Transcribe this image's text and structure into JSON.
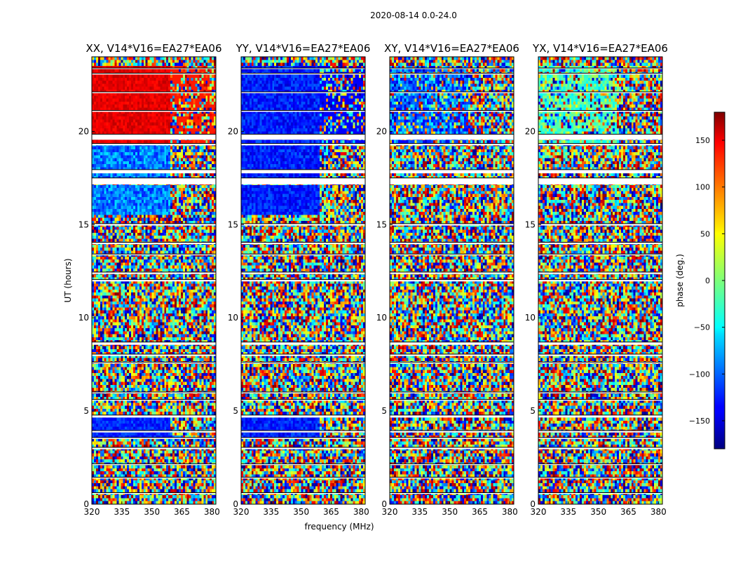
{
  "chart_data": {
    "type": "heatmap",
    "suptitle": "2020-08-14 0.0-24.0",
    "xlabel": "frequency (MHz)",
    "ylabel": "UT (hours)",
    "xlim": [
      320,
      382
    ],
    "ylim": [
      0,
      24
    ],
    "xticks": [
      "320",
      "335",
      "350",
      "365",
      "380"
    ],
    "yticks": [
      "0",
      "5",
      "10",
      "15",
      "20"
    ],
    "panels": [
      {
        "title": "XX, V14*V16=EA27*EA06",
        "pol": "XX"
      },
      {
        "title": "YY, V14*V16=EA27*EA06",
        "pol": "YY"
      },
      {
        "title": "XY, V14*V16=EA27*EA06",
        "pol": "XY"
      },
      {
        "title": "YX, V14*V16=EA27*EA06",
        "pol": "YX"
      }
    ],
    "flagged_ut_bands_hours": [
      [
        0.55,
        0.62
      ],
      [
        1.38,
        1.45
      ],
      [
        2.1,
        2.17
      ],
      [
        2.95,
        3.05
      ],
      [
        3.5,
        3.58
      ],
      [
        3.85,
        3.95
      ],
      [
        4.65,
        4.78
      ],
      [
        5.55,
        5.62
      ],
      [
        5.95,
        6.02
      ],
      [
        7.55,
        7.62
      ],
      [
        7.95,
        8.05
      ],
      [
        8.55,
        8.7
      ],
      [
        11.95,
        12.05
      ],
      [
        12.35,
        12.45
      ],
      [
        13.35,
        13.42
      ],
      [
        13.95,
        14.05
      ],
      [
        14.95,
        15.05
      ],
      [
        17.15,
        17.5
      ],
      [
        17.75,
        17.95
      ],
      [
        19.25,
        19.35
      ],
      [
        19.55,
        19.85
      ],
      [
        21.05,
        21.12
      ],
      [
        22.05,
        22.12
      ],
      [
        23.05,
        23.12
      ],
      [
        23.35,
        23.4
      ]
    ],
    "colorbar": {
      "label": "phase (deg.)",
      "range": [
        -180,
        180
      ],
      "ticks": [
        "150",
        "100",
        "50",
        "0",
        "−50",
        "−100",
        "−150"
      ],
      "tick_values": [
        150,
        100,
        50,
        0,
        -50,
        -100,
        -150
      ],
      "colormap": "jet"
    }
  }
}
